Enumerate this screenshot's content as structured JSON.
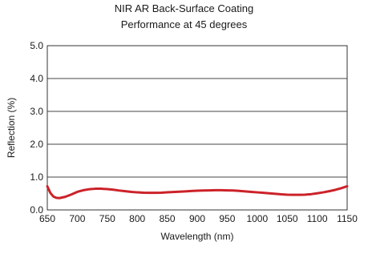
{
  "chart_data": {
    "type": "line",
    "title": "NIR AR Back-Surface Coating",
    "subtitle": "Performance at 45 degrees",
    "xlabel": "Wavelength (nm)",
    "ylabel": "Reflection (%)",
    "xlim": [
      650,
      1150
    ],
    "ylim": [
      0,
      5
    ],
    "x_ticks": [
      "650",
      "700",
      "750",
      "800",
      "850",
      "900",
      "950",
      "1000",
      "1050",
      "1100",
      "1150"
    ],
    "y_ticks": [
      "0.0",
      "1.0",
      "2.0",
      "3.0",
      "4.0",
      "5.0"
    ],
    "grid": "horizontal",
    "series": [
      {
        "color": "#cc2229",
        "x": [
          650,
          655,
          660,
          665,
          670,
          680,
          690,
          700,
          710,
          720,
          730,
          740,
          750,
          760,
          770,
          780,
          790,
          800,
          810,
          820,
          830,
          840,
          850,
          860,
          870,
          880,
          890,
          900,
          910,
          920,
          930,
          940,
          950,
          960,
          970,
          980,
          990,
          1000,
          1010,
          1020,
          1030,
          1040,
          1050,
          1060,
          1070,
          1080,
          1090,
          1100,
          1110,
          1120,
          1130,
          1140,
          1150
        ],
        "y": [
          0.72,
          0.52,
          0.41,
          0.37,
          0.36,
          0.4,
          0.47,
          0.55,
          0.6,
          0.63,
          0.645,
          0.645,
          0.635,
          0.615,
          0.59,
          0.57,
          0.55,
          0.535,
          0.525,
          0.52,
          0.52,
          0.525,
          0.535,
          0.545,
          0.555,
          0.565,
          0.575,
          0.585,
          0.59,
          0.595,
          0.6,
          0.6,
          0.595,
          0.59,
          0.58,
          0.565,
          0.55,
          0.535,
          0.52,
          0.505,
          0.49,
          0.475,
          0.465,
          0.46,
          0.46,
          0.465,
          0.48,
          0.505,
          0.535,
          0.57,
          0.61,
          0.66,
          0.72
        ]
      }
    ]
  }
}
